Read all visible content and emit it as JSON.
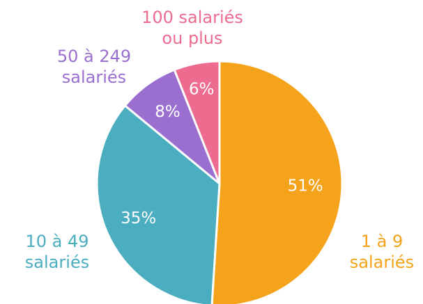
{
  "chart_data": {
    "type": "pie",
    "categories": [
      "1 à 9 salariés",
      "10 à 49 salariés",
      "50 à 249 salariés",
      "100 salariés ou plus"
    ],
    "values": [
      51,
      35,
      8,
      6
    ],
    "value_labels": [
      "51%",
      "35%",
      "8%",
      "6%"
    ],
    "colors": [
      "#f5a31a",
      "#4aadc0",
      "#9b6fd0",
      "#ee6b90"
    ]
  }
}
